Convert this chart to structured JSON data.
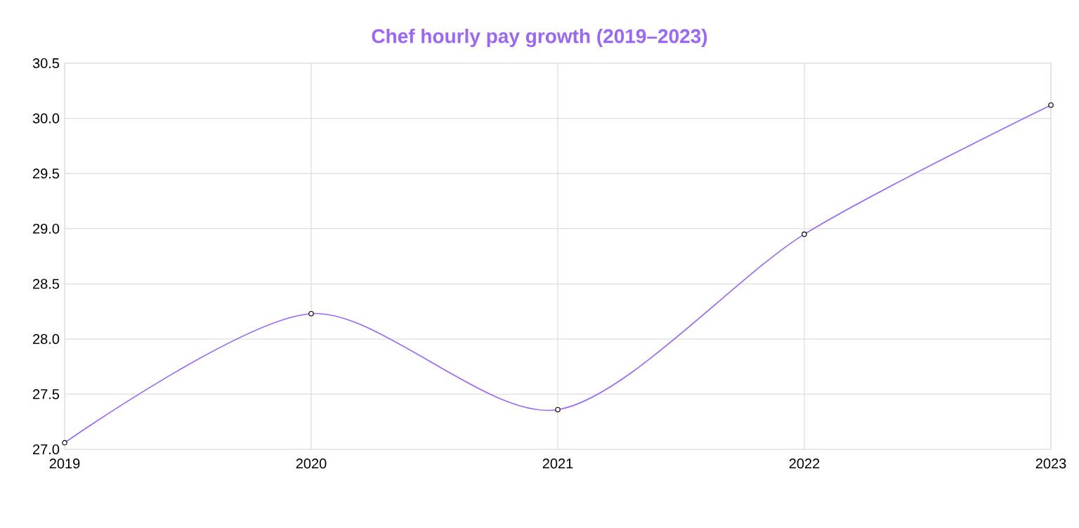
{
  "chart_data": {
    "type": "line",
    "title": "Chef hourly pay growth (2019–2023)",
    "categories": [
      "2019",
      "2020",
      "2021",
      "2022",
      "2023"
    ],
    "series": [
      {
        "color": "#9966ff",
        "values": [
          27.06,
          28.23,
          27.36,
          28.95,
          30.12
        ]
      }
    ],
    "ylim": [
      27.0,
      30.5
    ],
    "yticks": [
      {
        "value": 27.0,
        "label": "27.0"
      },
      {
        "value": 27.5,
        "label": "27.5"
      },
      {
        "value": 28.0,
        "label": "28.0"
      },
      {
        "value": 28.5,
        "label": "28.5"
      },
      {
        "value": 29.0,
        "label": "29.0"
      },
      {
        "value": 29.5,
        "label": "29.5"
      },
      {
        "value": 30.0,
        "label": "30.0"
      },
      {
        "value": 30.5,
        "label": "30.5"
      }
    ],
    "grid": true,
    "marker": "circle",
    "line_style": "solid"
  }
}
